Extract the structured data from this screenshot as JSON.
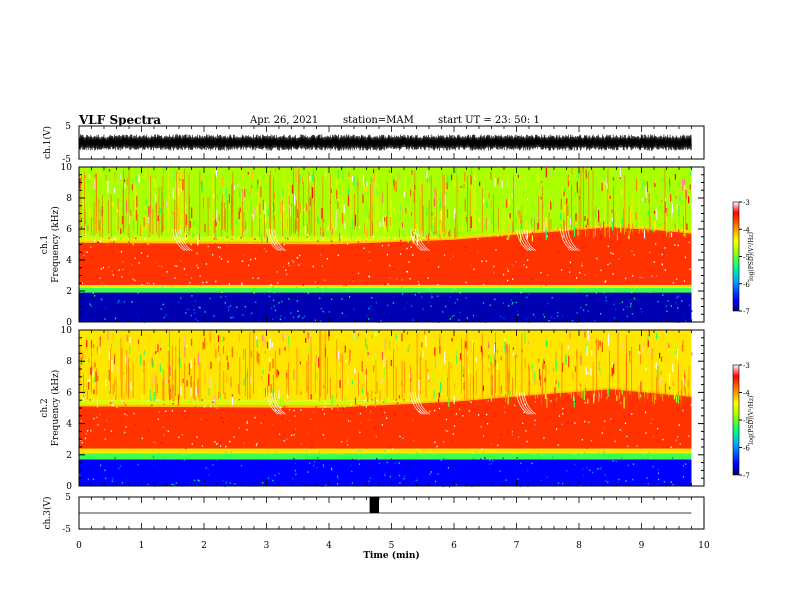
{
  "header": {
    "title": "VLF Spectra",
    "date": "Apr. 26, 2021",
    "station": "station=MAM",
    "start": "start  UT  =  23: 50: 1"
  },
  "chart_data": [
    {
      "type": "line",
      "panel": "waveform-ch1",
      "ylabel": "ch.1(V)",
      "ylim": [
        -5,
        5
      ],
      "yticklabels": [
        "5",
        "-5"
      ],
      "xlim": [
        0,
        10
      ],
      "description_values": {
        "amplitude_min": -2.5,
        "amplitude_max": 2.5
      }
    },
    {
      "type": "heatmap",
      "panel": "spectrogram-ch1",
      "ylabel": "ch.1\nFrequency (kHz)",
      "xlim": [
        0,
        10
      ],
      "ylim": [
        0,
        10
      ],
      "yticks": [
        0,
        2,
        4,
        6,
        8,
        10
      ],
      "data_end_min": 9.8,
      "bands": [
        {
          "from": 0.0,
          "to": 1.9,
          "level": -6.8
        },
        {
          "from": 1.9,
          "to": 2.2,
          "level": -5.2
        },
        {
          "from": 2.2,
          "to": 2.4,
          "level": -4.3
        },
        {
          "from": 2.4,
          "to": 5.2,
          "level": -3.4
        },
        {
          "from": 5.2,
          "to": 5.5,
          "level": -4.6
        },
        {
          "from": 5.5,
          "to": 10.0,
          "level": -4.8
        }
      ],
      "upper_edge_khz": [
        [
          0,
          5.2
        ],
        [
          4,
          5.1
        ],
        [
          6,
          5.4
        ],
        [
          7.2,
          5.8
        ],
        [
          8.5,
          6.2
        ],
        [
          9.3,
          6.0
        ],
        [
          9.8,
          5.8
        ]
      ],
      "whistler_times_min": [
        1.5,
        3.0,
        5.3,
        7.0,
        7.7
      ],
      "colorbar": {
        "range": [
          -7,
          -3
        ],
        "ticklabels": [
          "-3",
          "-4",
          "-5",
          "-6",
          "-7"
        ],
        "label": "log(PSD)(V²/Hz)"
      }
    },
    {
      "type": "heatmap",
      "panel": "spectrogram-ch2",
      "ylabel": "ch.2\nFrequency (kHz)",
      "xlim": [
        0,
        10
      ],
      "ylim": [
        0,
        10
      ],
      "yticks": [
        0,
        2,
        4,
        6,
        8,
        10
      ],
      "data_end_min": 9.8,
      "bands": [
        {
          "from": 0.0,
          "to": 1.7,
          "level": -6.6
        },
        {
          "from": 1.7,
          "to": 2.1,
          "level": -5.2
        },
        {
          "from": 2.1,
          "to": 2.4,
          "level": -4.3
        },
        {
          "from": 2.4,
          "to": 5.2,
          "level": -3.4
        },
        {
          "from": 5.2,
          "to": 5.5,
          "level": -4.6
        },
        {
          "from": 5.5,
          "to": 10.0,
          "level": -4.3
        }
      ],
      "upper_edge_khz": [
        [
          0,
          5.2
        ],
        [
          4,
          5.1
        ],
        [
          6,
          5.5
        ],
        [
          7.2,
          5.9
        ],
        [
          8.5,
          6.3
        ],
        [
          9.3,
          6.0
        ],
        [
          9.8,
          5.8
        ]
      ],
      "whistler_times_min": [
        3.0,
        5.3,
        7.0
      ],
      "colorbar": {
        "range": [
          -7,
          -3
        ],
        "ticklabels": [
          "-3",
          "-4",
          "-5",
          "-6",
          "-7"
        ],
        "label": "log(PSD)(V²/Hz)"
      }
    },
    {
      "type": "line",
      "panel": "waveform-ch3",
      "ylabel": "ch.3(V)",
      "ylim": [
        -5,
        5
      ],
      "yticklabels": [
        "5",
        "-5"
      ],
      "xlim": [
        0,
        10
      ],
      "baseline_v": 0,
      "pulse": {
        "start_min": 4.65,
        "end_min": 4.8,
        "high_v": 5
      }
    }
  ],
  "xaxis": {
    "label": "Time (min)",
    "ticks": [
      0,
      1,
      2,
      3,
      4,
      5,
      6,
      7,
      8,
      9,
      10
    ],
    "ticklabels": [
      "0",
      "1",
      "2",
      "3",
      "4",
      "5",
      "6",
      "7",
      "8",
      "9",
      "10"
    ]
  }
}
